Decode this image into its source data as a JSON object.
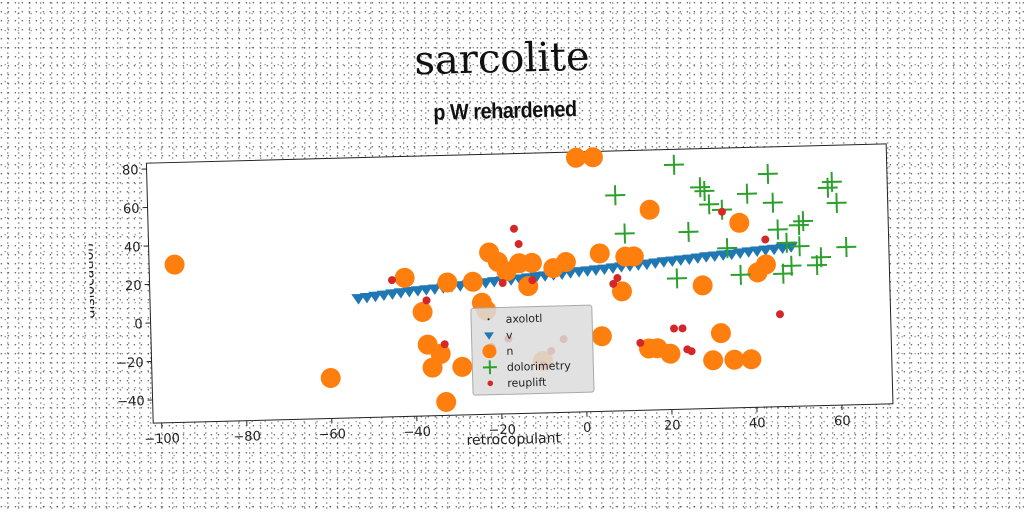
{
  "supertitle": "sarcolite",
  "chart_data": {
    "type": "scatter",
    "title": "p W rehardened",
    "xlabel": "retrocopulant",
    "ylabel": "dislocation",
    "xlim": [
      -102,
      72
    ],
    "ylim": [
      -52,
      83
    ],
    "xticks": [
      -100,
      -80,
      -60,
      -40,
      -20,
      0,
      20,
      40,
      60
    ],
    "yticks": [
      -40,
      -20,
      0,
      20,
      40,
      60,
      80
    ],
    "xtick_labels": [
      "−100",
      "−80",
      "−60",
      "−40",
      "−20",
      "0",
      "20",
      "40",
      "60"
    ],
    "ytick_labels": [
      "−40",
      "−20",
      "0",
      "20",
      "40",
      "60",
      "80"
    ],
    "grid": false,
    "legend_position": "lower center",
    "series": [
      {
        "name": "axolotl",
        "marker": "point",
        "color": "#1f1f1f",
        "points": []
      },
      {
        "name": "v",
        "marker": "triangle-down",
        "color": "#1f77b4",
        "points": [
          [
            -53,
            10
          ],
          [
            -51,
            10.5
          ],
          [
            -49,
            11
          ],
          [
            -47,
            11.5
          ],
          [
            -45,
            12
          ],
          [
            -43,
            12.5
          ],
          [
            -41,
            13
          ],
          [
            -39,
            13.3
          ],
          [
            -37,
            13.7
          ],
          [
            -35,
            14
          ],
          [
            -33,
            14.5
          ],
          [
            -31,
            15
          ],
          [
            -29,
            15.3
          ],
          [
            -27,
            15.7
          ],
          [
            -25,
            16
          ],
          [
            -23,
            16.5
          ],
          [
            -21,
            17
          ],
          [
            -19,
            17.3
          ],
          [
            -17,
            17.7
          ],
          [
            -15,
            18
          ],
          [
            -13,
            18.5
          ],
          [
            -11,
            19
          ],
          [
            -9,
            19.3
          ],
          [
            -7,
            19.7
          ],
          [
            -5,
            20
          ],
          [
            -3,
            20.5
          ],
          [
            -1,
            21
          ],
          [
            1,
            21.3
          ],
          [
            3,
            21.7
          ],
          [
            5,
            22
          ],
          [
            7,
            22.5
          ],
          [
            9,
            23
          ],
          [
            11,
            23.3
          ],
          [
            13,
            23.7
          ],
          [
            15,
            24
          ],
          [
            17,
            24.5
          ],
          [
            19,
            25
          ],
          [
            21,
            25.3
          ],
          [
            23,
            25.7
          ],
          [
            25,
            26
          ],
          [
            27,
            26.5
          ],
          [
            29,
            27
          ],
          [
            31,
            27.3
          ],
          [
            33,
            27.7
          ],
          [
            35,
            28
          ],
          [
            37,
            28.5
          ],
          [
            39,
            29
          ],
          [
            41,
            29.3
          ],
          [
            43,
            29.7
          ],
          [
            45,
            30
          ],
          [
            47,
            30.5
          ],
          [
            49,
            31
          ]
        ]
      },
      {
        "name": "n",
        "marker": "circle",
        "color": "#ff7f0e",
        "points": [
          [
            -96,
            30
          ],
          [
            -60,
            -31
          ],
          [
            -42,
            20
          ],
          [
            -38,
            2
          ],
          [
            -37,
            -15
          ],
          [
            -36,
            -27
          ],
          [
            -34,
            -20
          ],
          [
            -33,
            -45
          ],
          [
            -32,
            17
          ],
          [
            -29,
            -27
          ],
          [
            -26,
            17
          ],
          [
            -24,
            6
          ],
          [
            -23,
            2
          ],
          [
            -22,
            32
          ],
          [
            -20,
            27
          ],
          [
            -18,
            22
          ],
          [
            -15,
            26
          ],
          [
            -13,
            14
          ],
          [
            -12,
            26
          ],
          [
            -10,
            -25
          ],
          [
            -7,
            23
          ],
          [
            -4,
            26
          ],
          [
            -1,
            80
          ],
          [
            3,
            80
          ],
          [
            4,
            30
          ],
          [
            4,
            -13
          ],
          [
            9,
            10
          ],
          [
            10,
            28
          ],
          [
            12,
            28
          ],
          [
            15,
            -20
          ],
          [
            16,
            52
          ],
          [
            17,
            -20
          ],
          [
            20,
            -23
          ],
          [
            28,
            12
          ],
          [
            30,
            -27
          ],
          [
            32,
            -13
          ],
          [
            35,
            -27
          ],
          [
            37,
            44
          ],
          [
            39,
            -27
          ],
          [
            41,
            18
          ],
          [
            43,
            22
          ]
        ]
      },
      {
        "name": "dolorimetry",
        "marker": "plus",
        "color": "#2ca02c",
        "points": [
          [
            8,
            60
          ],
          [
            10,
            40
          ],
          [
            22,
            75
          ],
          [
            22,
            16
          ],
          [
            25,
            40
          ],
          [
            28,
            63
          ],
          [
            29,
            61
          ],
          [
            30,
            54
          ],
          [
            33,
            51
          ],
          [
            34,
            31
          ],
          [
            37,
            17
          ],
          [
            39,
            59
          ],
          [
            44,
            69
          ],
          [
            45,
            54
          ],
          [
            46,
            40
          ],
          [
            47,
            17
          ],
          [
            48,
            33
          ],
          [
            49,
            21
          ],
          [
            51,
            42
          ],
          [
            51,
            31
          ],
          [
            52,
            44
          ],
          [
            55,
            21
          ],
          [
            56,
            25
          ],
          [
            58,
            61
          ],
          [
            59,
            64
          ],
          [
            60,
            53
          ],
          [
            62,
            30
          ]
        ]
      },
      {
        "name": "reuplift",
        "marker": "circle-small",
        "color": "#d62728",
        "points": [
          [
            -45,
            19
          ],
          [
            -37,
            8
          ],
          [
            -33,
            -15
          ],
          [
            -22,
            -17
          ],
          [
            -19,
            16
          ],
          [
            -18,
            -13
          ],
          [
            -16,
            44
          ],
          [
            -15,
            36
          ],
          [
            -12,
            17
          ],
          [
            -10,
            -27
          ],
          [
            -8,
            -20
          ],
          [
            -5,
            -14
          ],
          [
            7,
            14
          ],
          [
            8,
            17
          ],
          [
            13,
            -17
          ],
          [
            21,
            -10
          ],
          [
            23,
            -10
          ],
          [
            24,
            -21
          ],
          [
            25,
            -22
          ],
          [
            33,
            50
          ],
          [
            43,
            35
          ],
          [
            46,
            -4
          ]
        ]
      }
    ]
  }
}
